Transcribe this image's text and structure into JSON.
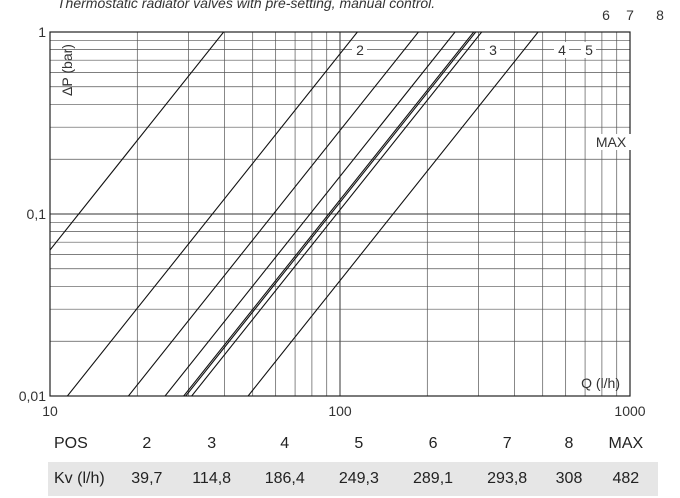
{
  "chart_data": {
    "type": "line",
    "title": "Thermostatic radiator valves with pre-setting, manual control.",
    "xscale": "log",
    "yscale": "log",
    "xlim": [
      10,
      1000
    ],
    "ylim": [
      0.01,
      1
    ],
    "xlabel": "Q (l/h)",
    "ylabel": "ΔP (bar)",
    "x_ticks": [
      "10",
      "100",
      "1000"
    ],
    "y_ticks": [
      "0,01",
      "0,1",
      "1"
    ],
    "series": [
      {
        "name": "2",
        "kv": 39.7
      },
      {
        "name": "3",
        "kv": 114.8
      },
      {
        "name": "4",
        "kv": 186.4
      },
      {
        "name": "5",
        "kv": 249.3
      },
      {
        "name": "6",
        "kv": 289.1
      },
      {
        "name": "7",
        "kv": 293.8
      },
      {
        "name": "8",
        "kv": 308
      },
      {
        "name": "MAX",
        "kv": 482
      }
    ]
  },
  "table": {
    "header_label": "POS",
    "row_label": "Kv (l/h)",
    "positions": [
      "2",
      "3",
      "4",
      "5",
      "6",
      "7",
      "8",
      "MAX"
    ],
    "kv_values": [
      "39,7",
      "114,8",
      "186,4",
      "249,3",
      "289,1",
      "293,8",
      "308",
      "482"
    ]
  }
}
